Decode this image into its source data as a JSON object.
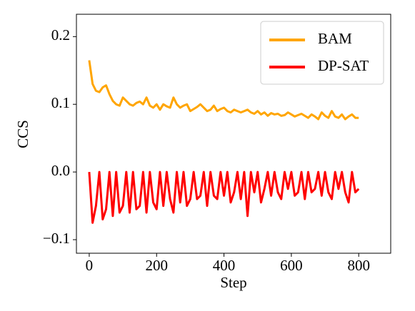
{
  "chart_data": {
    "type": "line",
    "x_label": "Step",
    "y_label": "CCS",
    "x": [
      0,
      10,
      20,
      30,
      40,
      50,
      60,
      70,
      80,
      90,
      100,
      110,
      120,
      130,
      140,
      150,
      160,
      170,
      180,
      190,
      200,
      210,
      220,
      230,
      240,
      250,
      260,
      270,
      280,
      290,
      300,
      310,
      320,
      330,
      340,
      350,
      360,
      370,
      380,
      390,
      400,
      410,
      420,
      430,
      440,
      450,
      460,
      470,
      480,
      490,
      500,
      510,
      520,
      530,
      540,
      550,
      560,
      570,
      580,
      590,
      600,
      610,
      620,
      630,
      640,
      650,
      660,
      670,
      680,
      690,
      700,
      710,
      720,
      730,
      740,
      750,
      760,
      770,
      780,
      790,
      800
    ],
    "series": [
      {
        "name": "BAM",
        "color": "#ffa500",
        "values": [
          0.165,
          0.13,
          0.12,
          0.118,
          0.125,
          0.128,
          0.115,
          0.105,
          0.1,
          0.098,
          0.11,
          0.105,
          0.1,
          0.098,
          0.102,
          0.104,
          0.1,
          0.11,
          0.098,
          0.095,
          0.1,
          0.092,
          0.1,
          0.097,
          0.095,
          0.11,
          0.1,
          0.095,
          0.098,
          0.1,
          0.09,
          0.093,
          0.096,
          0.1,
          0.095,
          0.09,
          0.092,
          0.098,
          0.09,
          0.093,
          0.095,
          0.09,
          0.088,
          0.092,
          0.09,
          0.088,
          0.09,
          0.092,
          0.088,
          0.086,
          0.09,
          0.085,
          0.088,
          0.083,
          0.087,
          0.085,
          0.086,
          0.083,
          0.084,
          0.088,
          0.085,
          0.082,
          0.084,
          0.086,
          0.083,
          0.08,
          0.085,
          0.082,
          0.078,
          0.088,
          0.083,
          0.08,
          0.09,
          0.082,
          0.08,
          0.085,
          0.078,
          0.082,
          0.085,
          0.08,
          0.08
        ]
      },
      {
        "name": "DP-SAT",
        "color": "#ff0000",
        "values": [
          0,
          -0.075,
          -0.05,
          0,
          -0.07,
          -0.055,
          0,
          -0.065,
          0,
          -0.06,
          -0.05,
          0,
          -0.06,
          0,
          -0.055,
          -0.05,
          0,
          -0.06,
          0,
          -0.045,
          -0.055,
          0,
          -0.05,
          0,
          -0.04,
          -0.06,
          0,
          -0.045,
          0,
          -0.05,
          -0.04,
          0,
          -0.04,
          -0.035,
          0,
          -0.05,
          0,
          -0.035,
          -0.04,
          0,
          -0.035,
          0,
          -0.045,
          -0.03,
          0,
          -0.04,
          0,
          -0.065,
          0,
          -0.03,
          0,
          -0.045,
          -0.025,
          0,
          -0.035,
          0,
          -0.03,
          -0.04,
          0,
          -0.025,
          0,
          -0.035,
          -0.03,
          0,
          -0.04,
          0,
          -0.03,
          -0.025,
          0,
          -0.035,
          0,
          -0.03,
          -0.04,
          0,
          -0.025,
          0,
          -0.03,
          -0.045,
          0,
          -0.03,
          -0.025
        ]
      }
    ],
    "xlim": [
      -38,
      895
    ],
    "xticks": [
      0,
      200,
      400,
      600,
      800
    ],
    "ylim": [
      -0.12,
      0.233
    ],
    "yticks": [
      {
        "value": -0.1,
        "label": "−0.1"
      },
      {
        "value": 0,
        "label": "0.0"
      },
      0.1,
      0.2
    ],
    "legend": "upper right",
    "grid": false
  }
}
